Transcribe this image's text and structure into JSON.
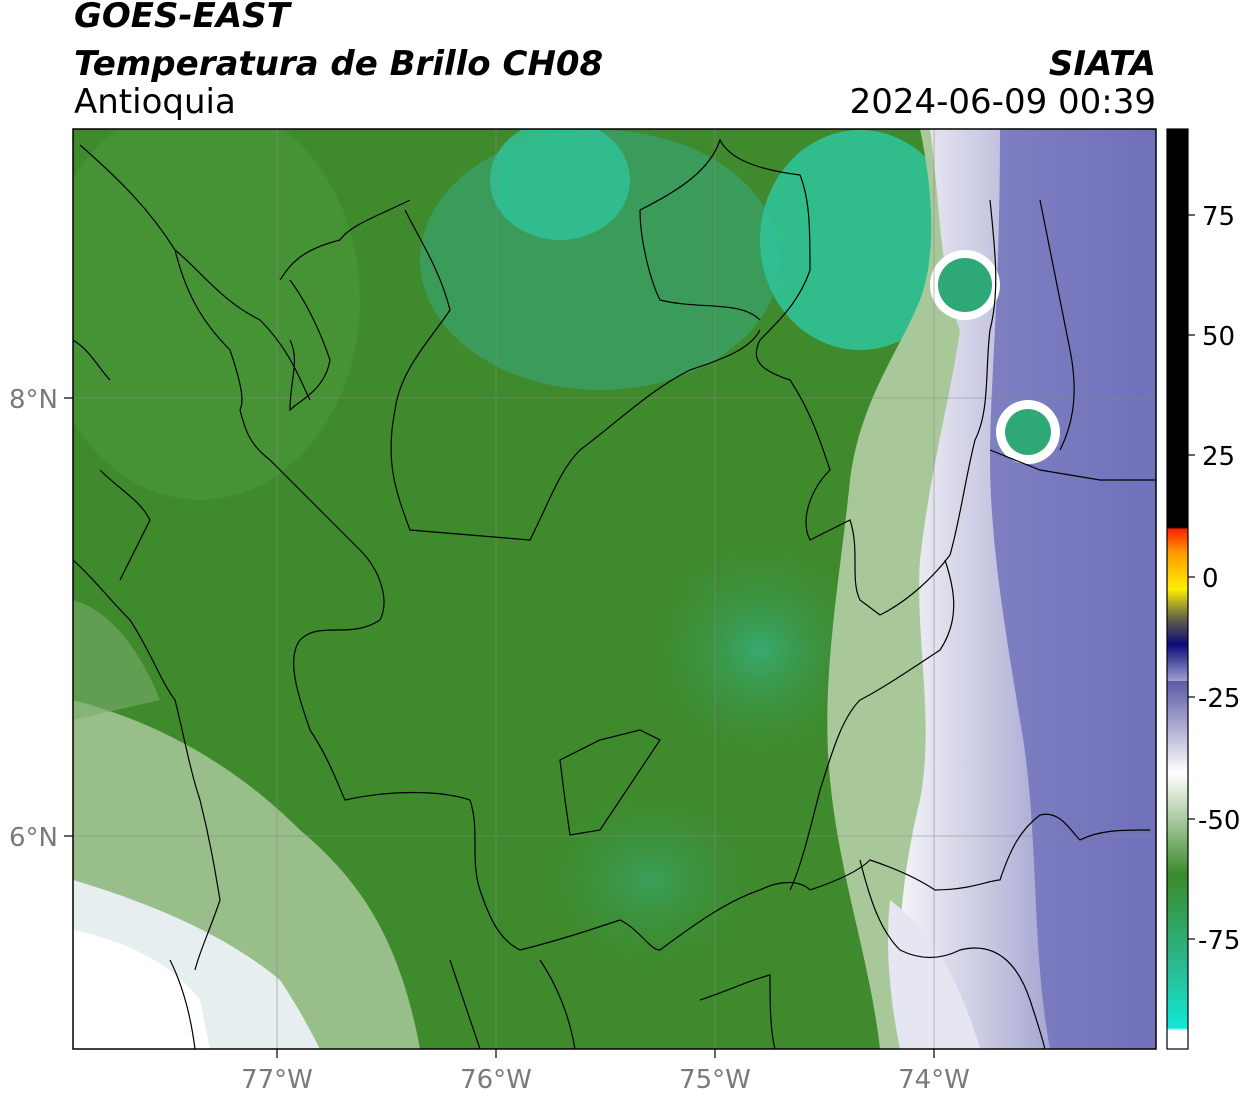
{
  "header": {
    "satellite": "GOES-EAST",
    "product": "Temperatura de Brillo CH08",
    "region": "Antioquia",
    "agency": "SIATA",
    "datetime": "2024-06-09 00:39"
  },
  "axes": {
    "lon_ticks": [
      "77°W",
      "76°W",
      "75°W",
      "74°W"
    ],
    "lat_ticks": [
      "8°N",
      "6°N"
    ]
  },
  "colorbar": {
    "ticks": [
      "75",
      "50",
      "25",
      "0",
      "-25",
      "-50",
      "-75"
    ],
    "colors": {
      "black": "#000000",
      "red": "#ff2200",
      "orange": "#ff9900",
      "yellow": "#ffee00",
      "navy": "#0a0a7a",
      "slate": "#5a5aa8",
      "white": "#ffffff",
      "green": "#3a8a2a",
      "teal": "#2aba90",
      "cyan": "#10e8d8"
    }
  },
  "map_colors": {
    "green_dark": "#3e8a2c",
    "green_mid": "#4f9a3f",
    "teal": "#34b88c",
    "light_green": "#a8c89a",
    "white": "#f4f4f8",
    "lavender": "#c8c8e2",
    "violet": "#6a6ab8",
    "border": "#000000"
  }
}
